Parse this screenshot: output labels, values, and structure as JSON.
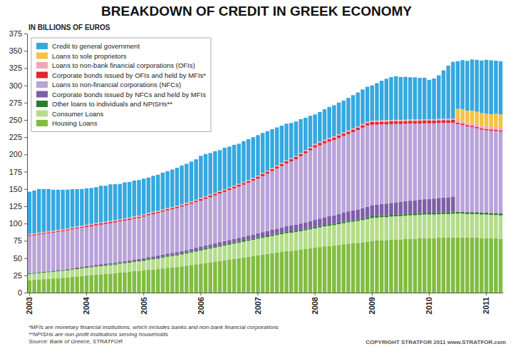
{
  "chart_data": {
    "type": "bar",
    "title": "BREAKDOWN OF CREDIT IN GREEK ECONOMY",
    "ylabel": "IN BILLIONS OF EUROS",
    "stacked": true,
    "legend": "upper left",
    "ylim": [
      0,
      375
    ],
    "yticks": [
      0,
      25,
      50,
      75,
      100,
      125,
      150,
      175,
      200,
      225,
      250,
      275,
      300,
      325,
      350,
      375
    ],
    "categories": [
      "2003",
      null,
      null,
      null,
      null,
      null,
      null,
      null,
      null,
      null,
      null,
      null,
      "2004",
      null,
      null,
      null,
      null,
      null,
      null,
      null,
      null,
      null,
      null,
      null,
      "2005",
      null,
      null,
      null,
      null,
      null,
      null,
      null,
      null,
      null,
      null,
      null,
      "2006",
      null,
      null,
      null,
      null,
      null,
      null,
      null,
      null,
      null,
      null,
      null,
      "2007",
      null,
      null,
      null,
      null,
      null,
      null,
      null,
      null,
      null,
      null,
      null,
      "2008",
      null,
      null,
      null,
      null,
      null,
      null,
      null,
      null,
      null,
      null,
      null,
      "2009",
      null,
      null,
      null,
      null,
      null,
      null,
      null,
      null,
      null,
      null,
      null,
      "2010",
      null,
      null,
      null,
      null,
      null,
      null,
      null,
      null,
      null,
      null,
      null,
      "2011",
      null,
      null,
      null
    ],
    "series": [
      {
        "name": "Housing Loans",
        "color": "#80bd41",
        "values": [
          18,
          18.5,
          19,
          19.5,
          20,
          20.5,
          21,
          21.5,
          22,
          23,
          23.5,
          24,
          25,
          25.5,
          26,
          26.5,
          27,
          27.5,
          28,
          29,
          29.5,
          30,
          31,
          31.5,
          32,
          33,
          33.5,
          34,
          35,
          36,
          36.5,
          37,
          38,
          39,
          40,
          41,
          42,
          43,
          44,
          45,
          46,
          47,
          48,
          49,
          50,
          51,
          52,
          53,
          54,
          55,
          56,
          57,
          58,
          59,
          60,
          60.5,
          61,
          62,
          63,
          64,
          65,
          66,
          67,
          67.5,
          68,
          69,
          70,
          71,
          71.5,
          72,
          73,
          74,
          75,
          75.5,
          76,
          76,
          76.5,
          77,
          77,
          77.5,
          78,
          78,
          78.5,
          79,
          79,
          79,
          79.5,
          79.5,
          79.5,
          80,
          80,
          80,
          79.5,
          79.5,
          79.5,
          79,
          79,
          78.5,
          78.5,
          78
        ]
      },
      {
        "name": "Consumer Loans",
        "color": "#b4dd8a",
        "values": [
          9,
          9,
          9.2,
          9.4,
          9.5,
          9.7,
          9.9,
          10,
          10.2,
          10.4,
          10.6,
          10.8,
          11,
          11.2,
          11.5,
          11.7,
          12,
          12.2,
          12.5,
          12.7,
          13,
          13.3,
          13.5,
          13.8,
          14,
          14.4,
          14.8,
          15.2,
          15.6,
          16,
          16.4,
          16.8,
          17.2,
          17.6,
          18,
          18.5,
          19,
          19.4,
          19.8,
          20.2,
          20.6,
          21,
          21.4,
          21.8,
          22.2,
          22.6,
          23,
          23.5,
          24,
          24.3,
          24.6,
          25,
          25.3,
          25.6,
          26,
          26.3,
          26.6,
          27,
          27.3,
          27.6,
          28,
          28.4,
          28.8,
          29.2,
          29.6,
          30,
          30.4,
          30.8,
          31.2,
          31.6,
          32,
          32.5,
          33,
          33,
          33.2,
          33.3,
          33.5,
          33.6,
          33.7,
          33.8,
          33.9,
          34,
          34,
          34,
          34,
          34,
          34,
          34.2,
          34.2,
          34.3,
          34.3,
          34.3,
          34.2,
          34.2,
          34.1,
          34,
          34,
          34,
          33.8,
          33.8
        ]
      },
      {
        "name": "Other loans to individuals and NPISHs**",
        "color": "#2f7a2f",
        "values": [
          1,
          1,
          1,
          1,
          1,
          1,
          1,
          1,
          1,
          1,
          1,
          1,
          1.2,
          1.2,
          1.2,
          1.2,
          1.2,
          1.2,
          1.2,
          1.2,
          1.2,
          1.2,
          1.2,
          1.2,
          1.5,
          1.5,
          1.5,
          1.5,
          1.5,
          1.5,
          1.5,
          1.5,
          1.5,
          1.5,
          1.5,
          1.5,
          1.8,
          1.8,
          1.8,
          1.8,
          1.8,
          1.8,
          1.8,
          1.8,
          1.8,
          1.8,
          1.8,
          1.8,
          2,
          2,
          2,
          2,
          2,
          2,
          2,
          2,
          2,
          2,
          2,
          2,
          2.3,
          2.3,
          2.3,
          2.3,
          2.3,
          2.3,
          2.3,
          2.3,
          2.3,
          2.3,
          2.3,
          2.3,
          2.6,
          2.6,
          2.6,
          2.6,
          2.6,
          2.6,
          2.6,
          2.6,
          2.6,
          2.6,
          2.6,
          2.6,
          2.8,
          2.8,
          2.8,
          2.8,
          2.8,
          2.8,
          2.8,
          2.8,
          2.8,
          2.8,
          2.8,
          2.8,
          2.8,
          2.8,
          2.8,
          2.8
        ]
      },
      {
        "name": "Corporate bonds issued by NFCs and held by MFIs",
        "color": "#7e5fa6",
        "values": [
          0.5,
          0.5,
          0.6,
          0.6,
          0.7,
          0.7,
          0.8,
          0.9,
          1,
          1.1,
          1.2,
          1.3,
          1.5,
          1.6,
          1.7,
          1.8,
          1.9,
          2,
          2,
          2.1,
          2.2,
          2.3,
          2.4,
          2.4,
          2.5,
          2.6,
          2.7,
          2.9,
          3,
          3.1,
          3.2,
          3.4,
          3.5,
          3.6,
          3.8,
          3.9,
          4,
          4.2,
          4.3,
          4.5,
          4.7,
          4.8,
          5,
          5.2,
          5.3,
          5.5,
          5.7,
          5.8,
          6,
          6.3,
          6.6,
          7,
          7.3,
          7.6,
          8,
          8.3,
          8.6,
          9,
          9.3,
          9.6,
          10,
          10.5,
          11,
          11.5,
          12,
          12.5,
          13,
          13.5,
          14,
          14.5,
          15,
          15.5,
          16,
          16.3,
          16.6,
          17,
          17.3,
          17.6,
          18,
          18.3,
          18.6,
          19,
          19.3,
          19.6,
          20,
          20.4,
          20.8,
          21.2,
          21.6,
          22,
          null,
          null,
          null,
          null,
          null,
          null,
          null,
          null,
          null,
          null
        ]
      },
      {
        "name": "Loans to non-financial corporations (NFCs)",
        "color": "#b9a3d9",
        "values": [
          53.5,
          53.8,
          54.1,
          54.4,
          54.7,
          55,
          55.3,
          55.6,
          55.9,
          56.2,
          56.5,
          56.9,
          56.3,
          56.6,
          56.9,
          57.2,
          57.4,
          57.6,
          57.9,
          58.1,
          58.4,
          58.6,
          58.9,
          59.1,
          60,
          60.5,
          61,
          61.5,
          62,
          62.5,
          63,
          63.5,
          64.2,
          64.8,
          65.4,
          66.1,
          66.2,
          67.2,
          68.2,
          69.2,
          70.2,
          71.2,
          72.2,
          73.2,
          74.2,
          75.4,
          76.6,
          77.9,
          79,
          81,
          83,
          85,
          87,
          89,
          91,
          93,
          95,
          97.5,
          100,
          102.8,
          104.7,
          106,
          107,
          108,
          109,
          110,
          111,
          112,
          113.5,
          115,
          116.5,
          117.7,
          116.4,
          115.8,
          115.2,
          114.6,
          114,
          113.4,
          112.8,
          112.2,
          111.6,
          111,
          110.4,
          109.8,
          109.2,
          108.8,
          108.4,
          108,
          107.5,
          106.9,
          126.9,
          125.5,
          124,
          123,
          121.5,
          120.2,
          119.2,
          119,
          118.7,
          118.4
        ]
      },
      {
        "name": "Corporate bonds issued by OFIs and held by MFIs*",
        "color": "#e2252b",
        "values": [
          1.5,
          1.5,
          1.5,
          1.5,
          1.5,
          1.5,
          1.5,
          1.5,
          1.5,
          1.5,
          1.5,
          1.5,
          1.8,
          1.8,
          1.8,
          1.8,
          1.8,
          1.8,
          1.8,
          1.8,
          1.8,
          1.8,
          1.8,
          1.8,
          2,
          2,
          2,
          2,
          2,
          2,
          2,
          2,
          2,
          2,
          2,
          2,
          2.5,
          2.5,
          2.5,
          2.5,
          2.5,
          2.5,
          2.5,
          2.5,
          2.5,
          2.5,
          2.5,
          2.5,
          3,
          3,
          3,
          3,
          3,
          3,
          3,
          3,
          3,
          3,
          3,
          3,
          3.5,
          3.5,
          3.5,
          3.5,
          3.5,
          3.5,
          3.5,
          3.5,
          3.5,
          3.5,
          3.5,
          3.5,
          4,
          4,
          4,
          4,
          4,
          4,
          4,
          4,
          4,
          4,
          4,
          4,
          4,
          4,
          4,
          4,
          4,
          4,
          2,
          2,
          2,
          2,
          2,
          2,
          2,
          2,
          2,
          2
        ]
      },
      {
        "name": "Loans to non-bank financial corporations (OFIs)",
        "color": "#f2a7b6",
        "values": [
          1.5,
          1.5,
          1.5,
          1.5,
          1.5,
          1.5,
          1.5,
          1.5,
          1.5,
          1.5,
          1.5,
          1.5,
          1.5,
          1.5,
          1.5,
          1.5,
          1.5,
          1.5,
          1.5,
          1.5,
          1.5,
          1.5,
          1.5,
          1.5,
          1.5,
          1.5,
          1.5,
          1.5,
          1.5,
          1.5,
          1.5,
          1.5,
          1.5,
          1.5,
          1.5,
          1.5,
          1.5,
          1.5,
          1.5,
          1.5,
          1.5,
          1.5,
          1.5,
          1.5,
          1.5,
          1.5,
          1.5,
          1.5,
          1.5,
          1.5,
          1.5,
          1.5,
          1.5,
          1.5,
          1.5,
          1.5,
          1.5,
          1.5,
          1.5,
          1.5,
          1.8,
          1.8,
          1.8,
          1.8,
          1.8,
          1.8,
          1.8,
          1.8,
          1.8,
          1.8,
          1.8,
          1.8,
          2,
          2,
          2,
          2,
          2,
          2,
          2,
          2,
          2,
          2,
          2,
          2,
          2,
          2,
          2,
          2,
          2,
          2,
          4,
          4,
          4,
          4,
          4,
          4,
          4,
          4,
          4,
          4
        ]
      },
      {
        "name": "Loans to sole proprietors",
        "color": "#f5c242",
        "values": [
          null,
          null,
          null,
          null,
          null,
          null,
          null,
          null,
          null,
          null,
          null,
          null,
          null,
          null,
          null,
          null,
          null,
          null,
          null,
          null,
          null,
          null,
          null,
          null,
          null,
          null,
          null,
          null,
          null,
          null,
          null,
          null,
          null,
          null,
          null,
          null,
          null,
          null,
          null,
          null,
          null,
          null,
          null,
          null,
          null,
          null,
          null,
          null,
          null,
          null,
          null,
          null,
          null,
          null,
          null,
          null,
          null,
          null,
          null,
          null,
          null,
          null,
          null,
          null,
          null,
          null,
          null,
          null,
          null,
          null,
          null,
          null,
          null,
          null,
          null,
          null,
          null,
          null,
          null,
          null,
          null,
          null,
          null,
          null,
          null,
          null,
          null,
          null,
          null,
          null,
          16,
          17,
          17,
          18,
          18,
          18,
          18,
          18,
          19,
          19
        ]
      },
      {
        "name": "Credit to general government",
        "color": "#35a8df",
        "values": [
          61,
          62,
          63,
          62,
          61,
          59,
          58,
          57,
          56,
          55,
          54,
          53,
          52.7,
          52,
          52,
          53,
          52,
          53,
          52,
          51,
          52,
          51.5,
          52,
          51.7,
          51.5,
          51,
          52,
          52,
          53,
          53,
          54,
          55,
          56,
          56.5,
          57.5,
          58.5,
          61,
          61,
          60,
          60,
          59,
          60,
          59,
          59,
          58,
          59,
          59,
          59,
          58.5,
          58,
          57,
          56,
          55,
          54,
          53,
          51,
          50,
          49,
          47,
          45.5,
          42.7,
          43,
          44,
          45,
          45,
          46,
          46,
          47,
          48,
          49,
          50,
          50.7,
          51,
          54,
          57,
          60,
          62,
          63,
          62,
          62,
          61,
          61,
          60,
          60,
          57,
          59,
          63,
          70,
          77,
          82,
          69,
          71,
          72,
          74,
          75,
          76,
          78,
          78,
          77,
          77
        ]
      }
    ],
    "annotations": [
      "*MFIs are monetary financial institutions, which includes banks and non-bank financial corporations",
      "**NPISHs are non-profit institutions serving households",
      "Source: Bank of Greece, STRATFOR",
      "COPYRIGHT STRATFOR 2011   www.STRATFOR.com"
    ]
  }
}
